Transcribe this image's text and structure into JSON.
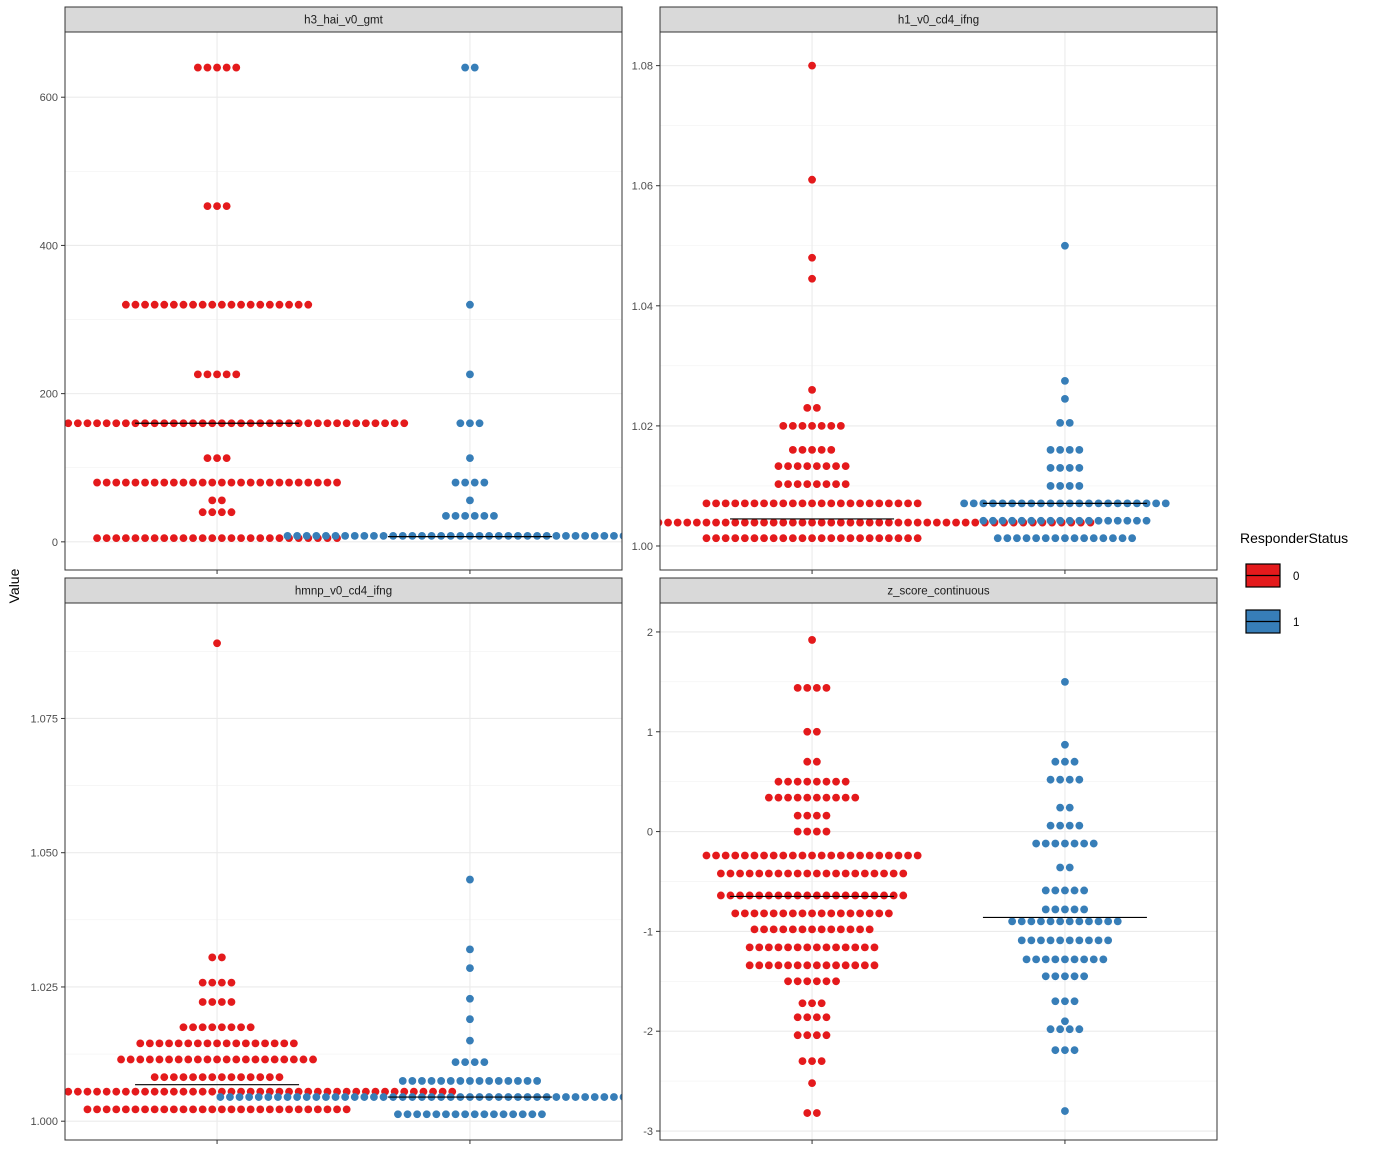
{
  "chart_data": {
    "type": "scatter",
    "subtype": "dotplot-faceted",
    "ylabel": "Value",
    "xlabel": "",
    "legend": {
      "title": "ResponderStatus",
      "placement": "right",
      "entries": [
        {
          "label": "0",
          "color": "#E41A1C"
        },
        {
          "label": "1",
          "color": "#377EB8"
        }
      ]
    },
    "groups": [
      "0",
      "1"
    ],
    "grid": true,
    "panels": [
      {
        "title": "h3_hai_v0_gmt",
        "ylim": [
          -38,
          688
        ],
        "yticks": [
          0,
          200,
          400,
          600
        ],
        "ytick_labels": [
          "0",
          "200",
          "400",
          "600"
        ],
        "series": [
          {
            "group": "0",
            "median": 160,
            "rows": [
              {
                "y": 640,
                "n": 5
              },
              {
                "y": 453,
                "n": 3
              },
              {
                "y": 320,
                "n": 20
              },
              {
                "y": 226,
                "n": 5
              },
              {
                "y": 160,
                "n": 40
              },
              {
                "y": 113,
                "n": 3
              },
              {
                "y": 80,
                "n": 26
              },
              {
                "y": 56,
                "n": 2
              },
              {
                "y": 40,
                "n": 4
              },
              {
                "y": 5,
                "n": 26
              }
            ]
          },
          {
            "group": "1",
            "median": 7,
            "rows": [
              {
                "y": 640,
                "n": 2
              },
              {
                "y": 320,
                "n": 1
              },
              {
                "y": 226,
                "n": 1
              },
              {
                "y": 160,
                "n": 3
              },
              {
                "y": 113,
                "n": 1
              },
              {
                "y": 80,
                "n": 4
              },
              {
                "y": 56,
                "n": 1
              },
              {
                "y": 35,
                "n": 6
              },
              {
                "y": 8,
                "n": 39
              }
            ]
          }
        ]
      },
      {
        "title": "h1_v0_cd4_ifng",
        "ylim": [
          0.996,
          1.0856
        ],
        "yticks": [
          1.0,
          1.02,
          1.04,
          1.06,
          1.08
        ],
        "ytick_labels": [
          "1.00",
          "1.02",
          "1.04",
          "1.06",
          "1.08"
        ],
        "series": [
          {
            "group": "0",
            "median": 1.0045,
            "rows": [
              {
                "y": 1.08,
                "n": 1
              },
              {
                "y": 1.061,
                "n": 1
              },
              {
                "y": 1.048,
                "n": 1
              },
              {
                "y": 1.0445,
                "n": 1
              },
              {
                "y": 1.026,
                "n": 1
              },
              {
                "y": 1.023,
                "n": 2
              },
              {
                "y": 1.02,
                "n": 7
              },
              {
                "y": 1.016,
                "n": 5
              },
              {
                "y": 1.0133,
                "n": 8
              },
              {
                "y": 1.0103,
                "n": 8
              },
              {
                "y": 1.0071,
                "n": 23
              },
              {
                "y": 1.0039,
                "n": 59
              },
              {
                "y": 1.0013,
                "n": 23
              }
            ]
          },
          {
            "group": "1",
            "median": 1.0071,
            "rows": [
              {
                "y": 1.05,
                "n": 1
              },
              {
                "y": 1.0275,
                "n": 1
              },
              {
                "y": 1.0245,
                "n": 1
              },
              {
                "y": 1.0205,
                "n": 2
              },
              {
                "y": 1.016,
                "n": 4
              },
              {
                "y": 1.013,
                "n": 4
              },
              {
                "y": 1.01,
                "n": 4
              },
              {
                "y": 1.0071,
                "n": 22
              },
              {
                "y": 1.0042,
                "n": 18
              },
              {
                "y": 1.0013,
                "n": 15
              }
            ]
          }
        ]
      },
      {
        "title": "hmnp_v0_cd4_ifng",
        "ylim": [
          0.9965,
          1.0965
        ],
        "yticks": [
          1.0,
          1.025,
          1.05,
          1.075
        ],
        "ytick_labels": [
          "1.000",
          "1.025",
          "1.050",
          "1.075"
        ],
        "series": [
          {
            "group": "0",
            "median": 1.0068,
            "rows": [
              {
                "y": 1.089,
                "n": 1
              },
              {
                "y": 1.0305,
                "n": 2
              },
              {
                "y": 1.0258,
                "n": 4
              },
              {
                "y": 1.0222,
                "n": 4
              },
              {
                "y": 1.0175,
                "n": 8
              },
              {
                "y": 1.0145,
                "n": 17
              },
              {
                "y": 1.0115,
                "n": 21
              },
              {
                "y": 1.0082,
                "n": 14
              },
              {
                "y": 1.0055,
                "n": 50
              },
              {
                "y": 1.0022,
                "n": 28
              }
            ]
          },
          {
            "group": "1",
            "median": 1.0045,
            "rows": [
              {
                "y": 1.045,
                "n": 1
              },
              {
                "y": 1.032,
                "n": 1
              },
              {
                "y": 1.0285,
                "n": 1
              },
              {
                "y": 1.0228,
                "n": 1
              },
              {
                "y": 1.019,
                "n": 1
              },
              {
                "y": 1.015,
                "n": 1
              },
              {
                "y": 1.011,
                "n": 4
              },
              {
                "y": 1.0075,
                "n": 15
              },
              {
                "y": 1.0045,
                "n": 53
              },
              {
                "y": 1.0013,
                "n": 16
              }
            ]
          }
        ]
      },
      {
        "title": "z_score_continuous",
        "ylim": [
          -3.09,
          2.29
        ],
        "yticks": [
          -3,
          -2,
          -1,
          0,
          1,
          2
        ],
        "ytick_labels": [
          "-3",
          "-2",
          "-1",
          "0",
          "1",
          "2"
        ],
        "series": [
          {
            "group": "0",
            "median": -0.65,
            "rows": [
              {
                "y": 1.92,
                "n": 1
              },
              {
                "y": 1.44,
                "n": 4
              },
              {
                "y": 1.0,
                "n": 2
              },
              {
                "y": 0.7,
                "n": 2
              },
              {
                "y": 0.5,
                "n": 8
              },
              {
                "y": 0.34,
                "n": 10
              },
              {
                "y": 0.16,
                "n": 4
              },
              {
                "y": 0.0,
                "n": 4
              },
              {
                "y": -0.24,
                "n": 23
              },
              {
                "y": -0.42,
                "n": 20
              },
              {
                "y": -0.64,
                "n": 20
              },
              {
                "y": -0.82,
                "n": 17
              },
              {
                "y": -0.98,
                "n": 13
              },
              {
                "y": -1.16,
                "n": 14
              },
              {
                "y": -1.34,
                "n": 14
              },
              {
                "y": -1.5,
                "n": 6
              },
              {
                "y": -1.72,
                "n": 3
              },
              {
                "y": -1.86,
                "n": 4
              },
              {
                "y": -2.04,
                "n": 4
              },
              {
                "y": -2.3,
                "n": 3
              },
              {
                "y": -2.52,
                "n": 1
              },
              {
                "y": -2.82,
                "n": 2
              }
            ]
          },
          {
            "group": "1",
            "median": -0.86,
            "rows": [
              {
                "y": 1.5,
                "n": 1
              },
              {
                "y": 0.87,
                "n": 1
              },
              {
                "y": 0.7,
                "n": 3
              },
              {
                "y": 0.52,
                "n": 4
              },
              {
                "y": 0.24,
                "n": 2
              },
              {
                "y": 0.06,
                "n": 4
              },
              {
                "y": -0.12,
                "n": 7
              },
              {
                "y": -0.36,
                "n": 2
              },
              {
                "y": -0.59,
                "n": 5
              },
              {
                "y": -0.78,
                "n": 5
              },
              {
                "y": -0.9,
                "n": 12
              },
              {
                "y": -1.09,
                "n": 10
              },
              {
                "y": -1.28,
                "n": 9
              },
              {
                "y": -1.45,
                "n": 5
              },
              {
                "y": -1.7,
                "n": 3
              },
              {
                "y": -1.9,
                "n": 1
              },
              {
                "y": -1.98,
                "n": 4
              },
              {
                "y": -2.19,
                "n": 3
              },
              {
                "y": -2.8,
                "n": 1
              }
            ]
          }
        ]
      }
    ]
  }
}
